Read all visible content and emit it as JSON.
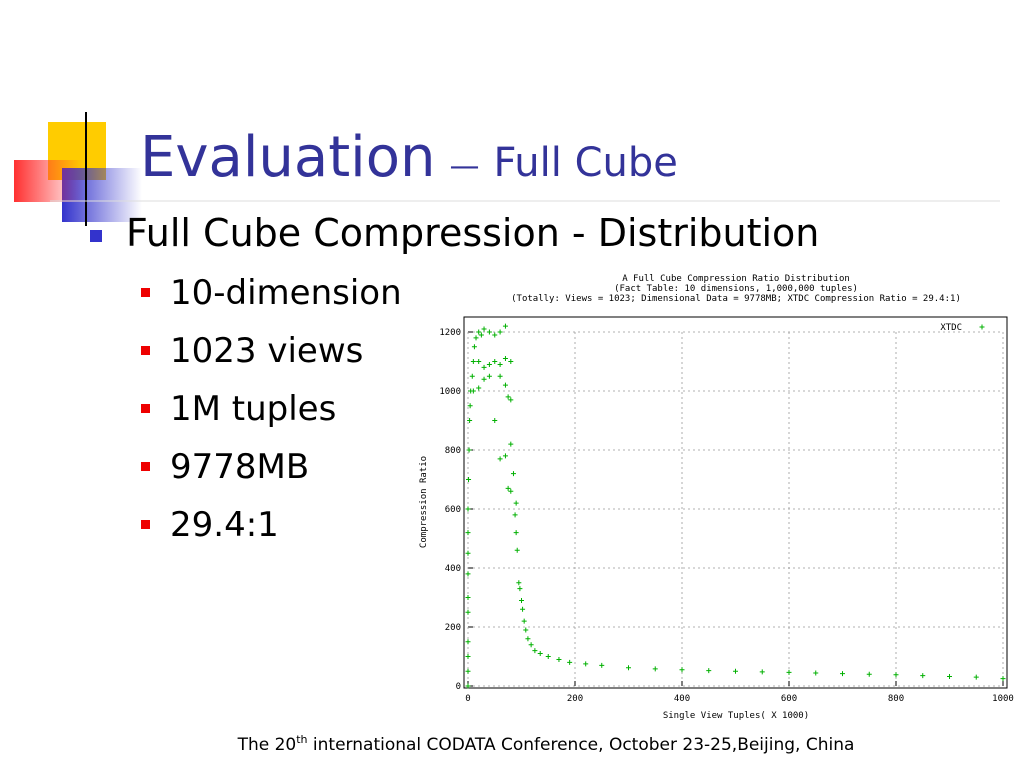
{
  "slide": {
    "title": "Evaluation",
    "title_separator": "—",
    "title_sub": "Full Cube",
    "bullet": "Full Cube Compression - Distribution",
    "subbullets": [
      "10-dimension",
      "1023 views",
      "1M tuples",
      "9778MB",
      "29.4:1"
    ],
    "footer": [
      "The 20",
      "th",
      " international CODATA Conference, October 23-25,Beijing, China"
    ]
  },
  "chart_data": {
    "type": "scatter",
    "title": [
      "A Full Cube Compression Ratio Distribution",
      "(Fact Table: 10 dimensions, 1,000,000 tuples)",
      "(Totally: Views = 1023; Dimensional Data = 9778MB; XTDC Compression Ratio = 29.4:1)"
    ],
    "xlabel": "Single View Tuples( X 1000)",
    "ylabel": "Compression Ratio",
    "x": [
      0,
      0,
      0,
      0,
      0,
      0,
      1,
      2,
      3,
      4,
      5,
      8,
      10,
      12,
      15,
      20,
      25,
      30,
      40,
      50,
      60,
      70,
      20,
      30,
      40,
      50,
      60,
      70,
      80,
      10,
      20,
      30,
      40,
      60,
      70,
      75,
      80,
      50,
      60,
      70,
      80,
      85,
      75,
      80,
      90,
      88,
      90,
      92,
      95,
      97,
      100,
      102,
      105,
      108,
      112,
      118,
      125,
      135,
      150,
      170,
      190,
      220,
      250,
      300,
      350,
      400,
      450,
      500,
      550,
      600,
      650,
      700,
      750,
      800,
      850,
      900,
      950,
      1000,
      0,
      0,
      0,
      0
    ],
    "series": [
      {
        "name": "XTDC",
        "color": "#00b000",
        "values": [
          0,
          50,
          150,
          300,
          450,
          600,
          700,
          800,
          900,
          950,
          1000,
          1050,
          1100,
          1150,
          1180,
          1200,
          1190,
          1210,
          1200,
          1190,
          1200,
          1220,
          1100,
          1080,
          1090,
          1100,
          1090,
          1110,
          1100,
          1000,
          1010,
          1040,
          1050,
          1050,
          1020,
          980,
          970,
          900,
          770,
          780,
          820,
          720,
          670,
          660,
          620,
          580,
          520,
          460,
          350,
          330,
          290,
          260,
          220,
          190,
          160,
          140,
          120,
          110,
          100,
          90,
          80,
          75,
          70,
          62,
          58,
          55,
          52,
          50,
          48,
          46,
          44,
          42,
          40,
          38,
          35,
          32,
          30,
          25,
          100,
          250,
          380,
          520
        ]
      }
    ],
    "xlim": [
      0,
      1000
    ],
    "ylim": [
      0,
      1200
    ],
    "xticks": [
      0,
      200,
      400,
      600,
      800,
      1000
    ],
    "yticks": [
      0,
      200,
      400,
      600,
      800,
      1000,
      1200
    ],
    "grid": true,
    "legend": "upper right"
  }
}
